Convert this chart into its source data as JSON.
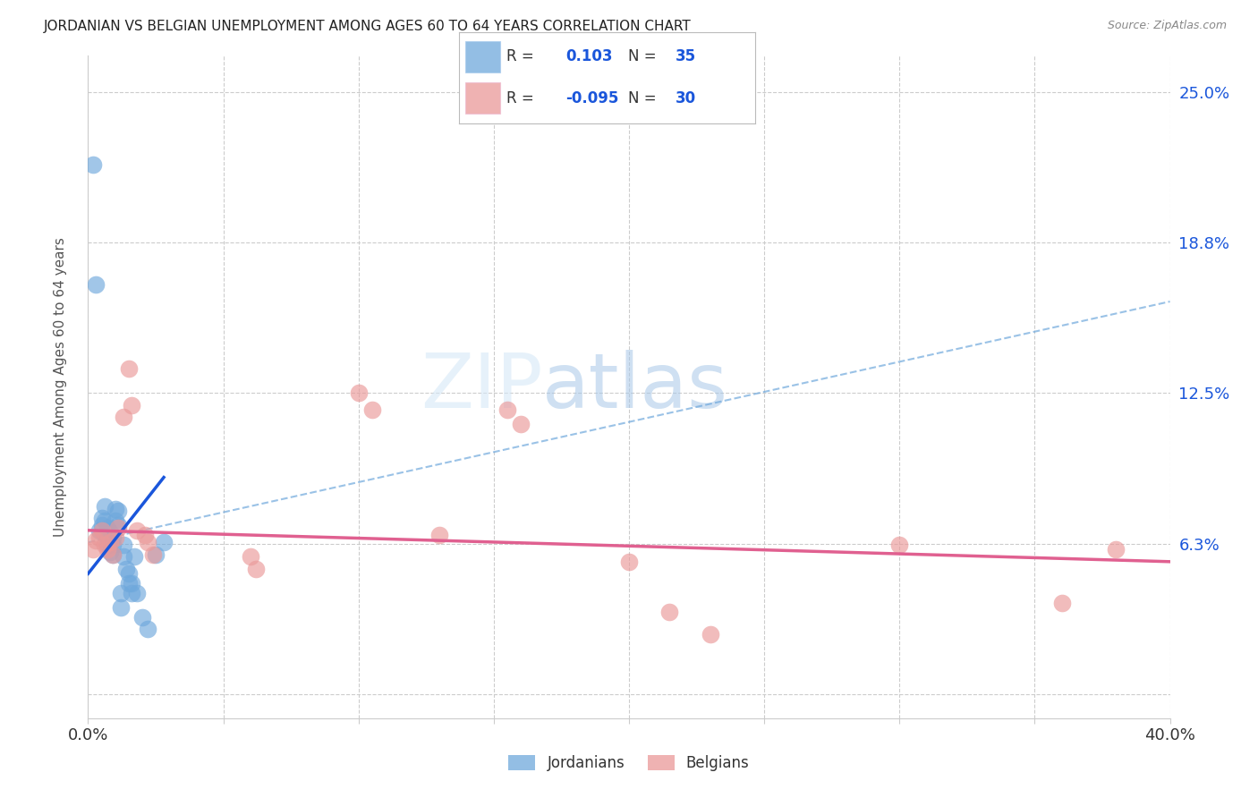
{
  "title": "JORDANIAN VS BELGIAN UNEMPLOYMENT AMONG AGES 60 TO 64 YEARS CORRELATION CHART",
  "source": "Source: ZipAtlas.com",
  "ylabel": "Unemployment Among Ages 60 to 64 years",
  "xlim": [
    0.0,
    0.4
  ],
  "ylim": [
    -0.01,
    0.265
  ],
  "xticks": [
    0.0,
    0.05,
    0.1,
    0.15,
    0.2,
    0.25,
    0.3,
    0.35,
    0.4
  ],
  "xticklabels": [
    "0.0%",
    "",
    "",
    "",
    "",
    "",
    "",
    "",
    "40.0%"
  ],
  "ytick_positions": [
    0.0,
    0.0625,
    0.125,
    0.1875,
    0.25
  ],
  "ytick_labels": [
    "",
    "6.3%",
    "12.5%",
    "18.8%",
    "25.0%"
  ],
  "legend_jordan_R": "0.103",
  "legend_jordan_N": "35",
  "legend_belgian_R": "-0.095",
  "legend_belgian_N": "30",
  "jordan_color": "#6fa8dc",
  "belgian_color": "#ea9999",
  "jordan_line_color": "#1a56db",
  "belgian_line_color": "#e06090",
  "dashed_line_color": "#6fa8dc",
  "watermark_zip": "ZIP",
  "watermark_atlas": "atlas",
  "background_color": "#ffffff",
  "grid_color": "#cccccc",
  "jordan_points_x": [
    0.002,
    0.003,
    0.004,
    0.005,
    0.005,
    0.006,
    0.006,
    0.007,
    0.007,
    0.007,
    0.008,
    0.008,
    0.008,
    0.009,
    0.009,
    0.009,
    0.01,
    0.01,
    0.011,
    0.011,
    0.012,
    0.012,
    0.013,
    0.013,
    0.014,
    0.015,
    0.015,
    0.016,
    0.016,
    0.017,
    0.018,
    0.02,
    0.022,
    0.025,
    0.028
  ],
  "jordan_points_y": [
    0.22,
    0.17,
    0.068,
    0.073,
    0.07,
    0.078,
    0.072,
    0.069,
    0.065,
    0.062,
    0.067,
    0.063,
    0.059,
    0.065,
    0.062,
    0.058,
    0.077,
    0.072,
    0.076,
    0.07,
    0.042,
    0.036,
    0.062,
    0.057,
    0.052,
    0.05,
    0.046,
    0.046,
    0.042,
    0.057,
    0.042,
    0.032,
    0.027,
    0.058,
    0.063
  ],
  "belgian_points_x": [
    0.002,
    0.003,
    0.004,
    0.005,
    0.006,
    0.007,
    0.008,
    0.009,
    0.01,
    0.011,
    0.013,
    0.015,
    0.016,
    0.018,
    0.021,
    0.022,
    0.024,
    0.06,
    0.062,
    0.1,
    0.105,
    0.13,
    0.155,
    0.16,
    0.2,
    0.215,
    0.23,
    0.3,
    0.36,
    0.38
  ],
  "belgian_points_y": [
    0.06,
    0.064,
    0.065,
    0.068,
    0.062,
    0.06,
    0.063,
    0.058,
    0.065,
    0.069,
    0.115,
    0.135,
    0.12,
    0.068,
    0.066,
    0.063,
    0.058,
    0.057,
    0.052,
    0.125,
    0.118,
    0.066,
    0.118,
    0.112,
    0.055,
    0.034,
    0.025,
    0.062,
    0.038,
    0.06
  ],
  "jordan_line_x0": 0.0,
  "jordan_line_y0": 0.05,
  "jordan_line_x1": 0.028,
  "jordan_line_y1": 0.09,
  "belgian_line_x0": 0.0,
  "belgian_line_y0": 0.068,
  "belgian_line_x1": 0.4,
  "belgian_line_y1": 0.055,
  "dashed_line_x0": 0.0,
  "dashed_line_y0": 0.063,
  "dashed_line_x1": 0.4,
  "dashed_line_y1": 0.163
}
